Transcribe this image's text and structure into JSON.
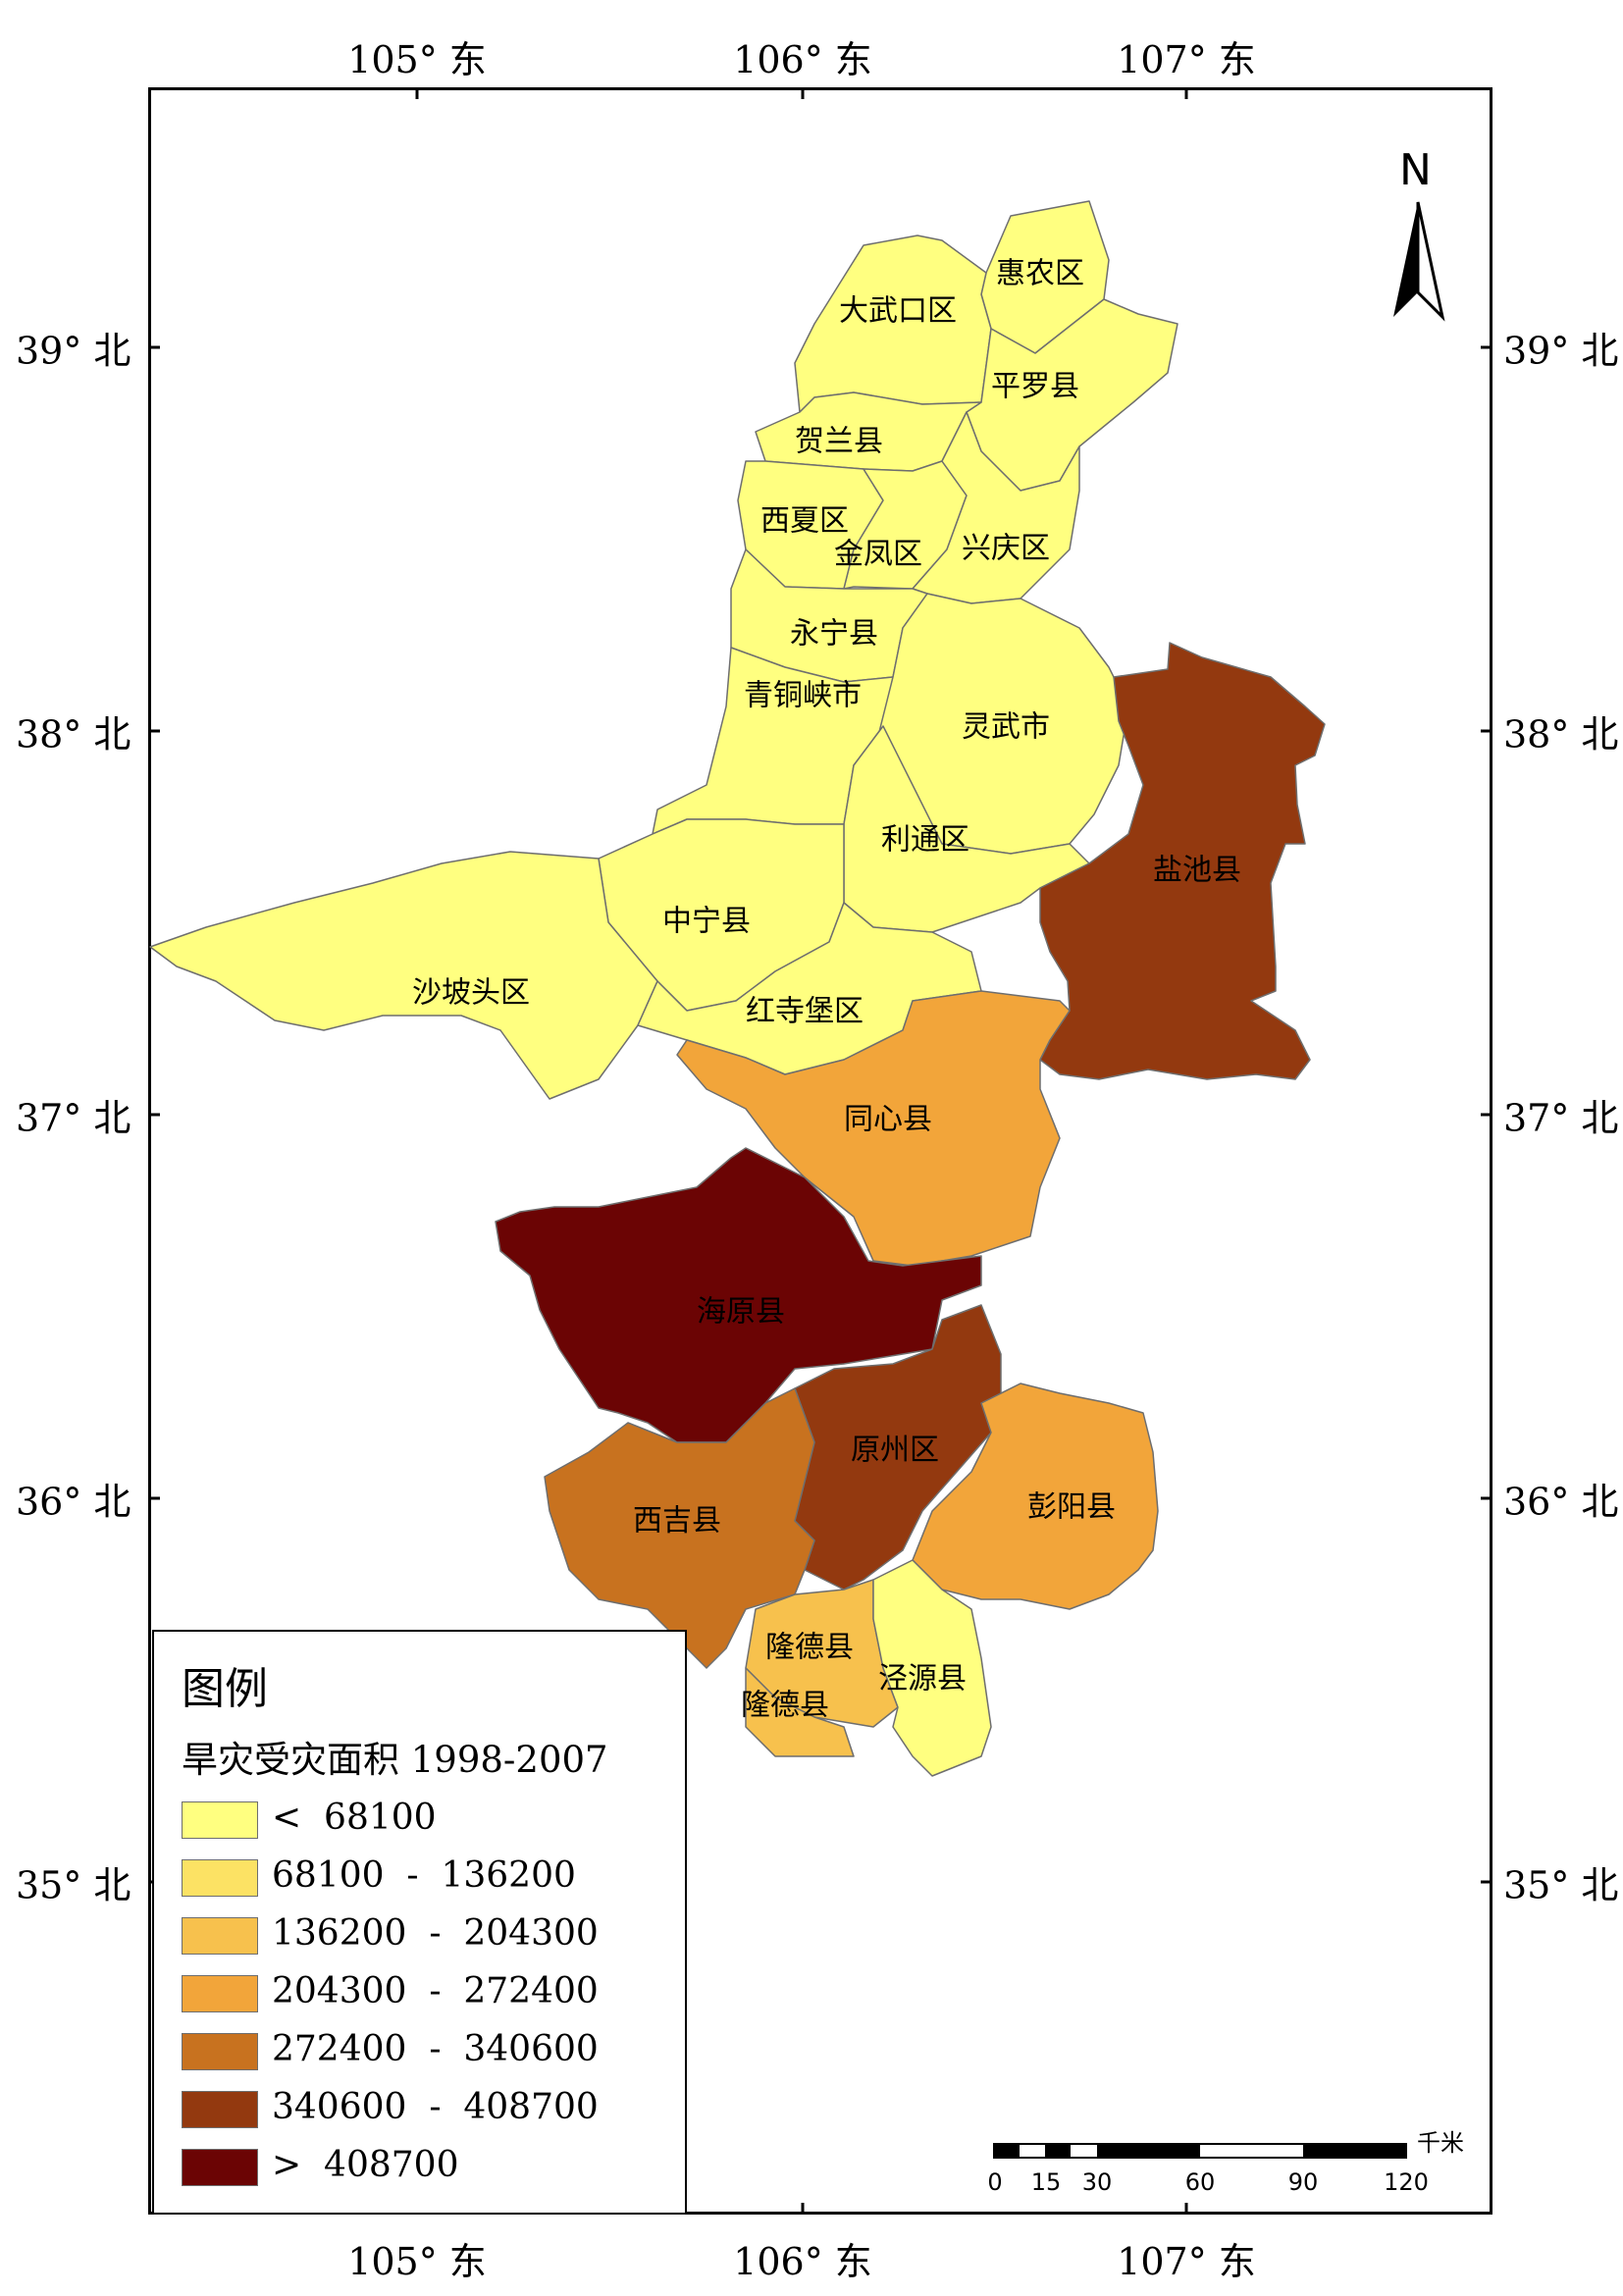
{
  "graticule": {
    "lon_top": [
      "105° 东",
      "106° 东",
      "107° 东"
    ],
    "lon_bottom": [
      "105° 东",
      "106° 东",
      "107° 东"
    ],
    "lat_left": [
      "39° 北",
      "38° 北",
      "37° 北",
      "36° 北",
      "35° 北"
    ],
    "lat_right": [
      "39° 北",
      "38° 北",
      "37° 北",
      "36° 北",
      "35° 北"
    ]
  },
  "north_arrow": {
    "letter": "N",
    "icon": "north-arrow-icon"
  },
  "legend": {
    "title": "图例",
    "subtitle": "旱灾受灾面积 1998-2007",
    "classes": [
      {
        "label": "<  68100",
        "color": "#FFFF80"
      },
      {
        "label": "68100  -  136200",
        "color": "#FCE264"
      },
      {
        "label": "136200  -  204300",
        "color": "#F7C14D"
      },
      {
        "label": "204300  -  272400",
        "color": "#F2A53A"
      },
      {
        "label": "272400  -  340600",
        "color": "#C8721F"
      },
      {
        "label": "340600  -  408700",
        "color": "#93390F"
      },
      {
        "label": ">  408700",
        "color": "#6B0404"
      }
    ]
  },
  "scale_bar": {
    "unit": "千米",
    "ticks": [
      "0",
      "15",
      "30",
      "60",
      "90",
      "120"
    ]
  },
  "regions": [
    {
      "name": "惠农区",
      "class": 0
    },
    {
      "name": "大武口区",
      "class": 0
    },
    {
      "name": "平罗县",
      "class": 0
    },
    {
      "name": "贺兰县",
      "class": 0
    },
    {
      "name": "西夏区",
      "class": 0
    },
    {
      "name": "金凤区",
      "class": 0
    },
    {
      "name": "兴庆区",
      "class": 0
    },
    {
      "name": "永宁县",
      "class": 0
    },
    {
      "name": "青铜峡市",
      "class": 0
    },
    {
      "name": "灵武市",
      "class": 0
    },
    {
      "name": "利通区",
      "class": 0
    },
    {
      "name": "中宁县",
      "class": 0
    },
    {
      "name": "沙坡头区",
      "class": 0
    },
    {
      "name": "红寺堡区",
      "class": 0
    },
    {
      "name": "盐池县",
      "class": 5
    },
    {
      "name": "同心县",
      "class": 3
    },
    {
      "name": "海原县",
      "class": 6
    },
    {
      "name": "原州区",
      "class": 5
    },
    {
      "name": "西吉县",
      "class": 4
    },
    {
      "name": "彭阳县",
      "class": 3
    },
    {
      "name": "隆德县",
      "class": 2
    },
    {
      "name": "隆德县",
      "class": 2
    },
    {
      "name": "泾源县",
      "class": 0
    }
  ]
}
